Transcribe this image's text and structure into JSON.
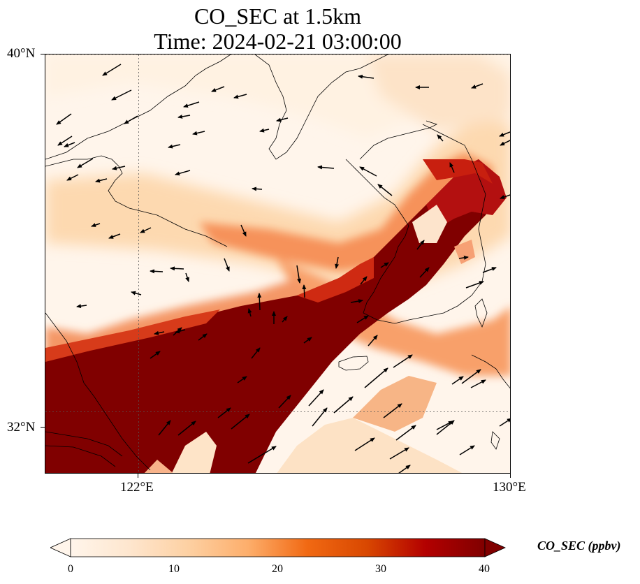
{
  "title": {
    "line1": "CO_SEC at 1.5km",
    "line2": "Time: 2024-02-21 03:00:00"
  },
  "map": {
    "region": "Yellow Sea / Korean Peninsula / East China",
    "lon_range": [
      120,
      130
    ],
    "lat_range": [
      30.6,
      40
    ],
    "latitude_labels": [
      "40°N",
      "32°N"
    ],
    "longitude_labels": [
      "122°E",
      "130°E"
    ],
    "gridlines": {
      "style": "dotted",
      "lon": [
        122,
        130
      ],
      "lat": [
        32,
        40
      ]
    },
    "field_colormap": "OrRd",
    "wind_vectors": "shown"
  },
  "colorbar": {
    "title": "CO_SEC (ppbv)",
    "ticks": [
      "0",
      "10",
      "20",
      "30",
      "40"
    ],
    "range": [
      0,
      40
    ],
    "extend": "both",
    "colors": [
      "#fff5eb",
      "#fee6ce",
      "#fdd0a2",
      "#fdae6b",
      "#f16913",
      "#d94801",
      "#b30000",
      "#800000"
    ]
  }
}
